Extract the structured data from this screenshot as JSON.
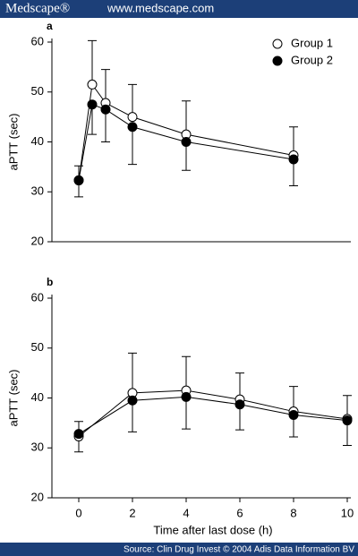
{
  "header": {
    "logo": "Medscape®",
    "url": "www.medscape.com"
  },
  "chart_data": [
    {
      "type": "line",
      "panel_label": "a",
      "y_label": "aPTT (sec)",
      "xlim": [
        -1,
        10
      ],
      "ylim": [
        20,
        60
      ],
      "yticks": [
        20,
        30,
        40,
        50,
        60
      ],
      "x": [
        0,
        0.5,
        1,
        2,
        4,
        8
      ],
      "legend": "top-right",
      "series": [
        {
          "name": "Group 1",
          "color": "#ffffff",
          "error_side": "up",
          "values": [
            32.3,
            51.5,
            47.8,
            45,
            41.5,
            37.3
          ],
          "errors": [
            2.9,
            8.8,
            6.7,
            6.5,
            6.7,
            5.7
          ]
        },
        {
          "name": "Group 2",
          "color": "#000000",
          "error_side": "down",
          "values": [
            32.3,
            47.5,
            46.5,
            43,
            40,
            36.5
          ],
          "errors": [
            3.3,
            6,
            6.5,
            7.5,
            5.7,
            5.3
          ]
        }
      ]
    },
    {
      "type": "line",
      "panel_label": "b",
      "y_label": "aPTT (sec)",
      "x_label": "Time after last dose (h)",
      "xlim": [
        -1,
        10
      ],
      "ylim": [
        20,
        60
      ],
      "yticks": [
        20,
        30,
        40,
        50,
        60
      ],
      "xticks": [
        0,
        2,
        4,
        6,
        8,
        10
      ],
      "x": [
        0,
        2,
        4,
        6,
        8,
        10
      ],
      "series": [
        {
          "color": "#ffffff",
          "error_side": "up",
          "values": [
            32.3,
            41,
            41.5,
            39.7,
            37.3,
            35.8
          ],
          "errors": [
            3,
            8,
            6.8,
            5.3,
            5,
            4.7
          ]
        },
        {
          "color": "#000000",
          "error_side": "down",
          "values": [
            32.8,
            39.5,
            40.2,
            38.7,
            36.6,
            35.5
          ],
          "errors": [
            3.6,
            6.3,
            6.4,
            5.1,
            4.4,
            5
          ]
        }
      ]
    }
  ],
  "footer": {
    "source": "Source: Clin Drug Invest © 2004 Adis Data Information BV"
  }
}
